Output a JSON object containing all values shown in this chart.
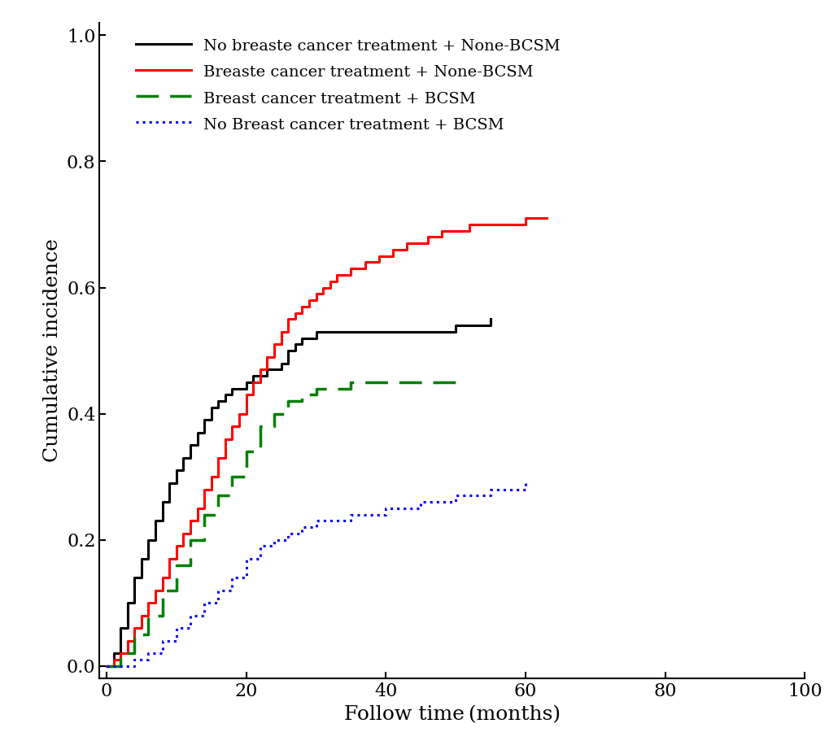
{
  "xlabel": "Follow time（months）",
  "ylabel": "Cumulative incidence",
  "xlim": [
    -1,
    100
  ],
  "ylim": [
    -0.02,
    1.0
  ],
  "xticks": [
    0,
    20,
    40,
    60,
    80,
    100
  ],
  "yticks": [
    0.0,
    0.2,
    0.4,
    0.6,
    0.8,
    1.0
  ],
  "legend_labels": [
    "No breaste cancer treatment + None-BCSM",
    "Breaste cancer treatment + None-BCSM",
    "Breast cancer treatment + BCSM",
    "No Breast cancer treatment + BCSM"
  ],
  "series": [
    {
      "name": "black_solid",
      "color": "#000000",
      "linestyle": "solid",
      "linewidth": 2.2,
      "x": [
        0,
        1,
        2,
        3,
        4,
        5,
        6,
        7,
        8,
        9,
        10,
        11,
        12,
        13,
        14,
        15,
        16,
        17,
        18,
        19,
        20,
        21,
        22,
        23,
        24,
        25,
        26,
        27,
        28,
        29,
        30,
        32,
        35,
        40,
        45,
        50,
        55
      ],
      "y": [
        0.0,
        0.02,
        0.06,
        0.1,
        0.14,
        0.17,
        0.2,
        0.23,
        0.26,
        0.29,
        0.31,
        0.33,
        0.35,
        0.37,
        0.39,
        0.41,
        0.42,
        0.43,
        0.44,
        0.44,
        0.45,
        0.46,
        0.46,
        0.47,
        0.47,
        0.48,
        0.5,
        0.51,
        0.52,
        0.52,
        0.53,
        0.53,
        0.53,
        0.53,
        0.53,
        0.54,
        0.55
      ]
    },
    {
      "name": "red_solid",
      "color": "#FF0000",
      "linestyle": "solid",
      "linewidth": 2.2,
      "x": [
        0,
        1,
        2,
        3,
        4,
        5,
        6,
        7,
        8,
        9,
        10,
        11,
        12,
        13,
        14,
        15,
        16,
        17,
        18,
        19,
        20,
        21,
        22,
        23,
        24,
        25,
        26,
        27,
        28,
        29,
        30,
        31,
        32,
        33,
        34,
        35,
        36,
        37,
        38,
        39,
        40,
        41,
        42,
        43,
        44,
        45,
        46,
        47,
        48,
        50,
        52,
        55,
        58,
        60,
        63
      ],
      "y": [
        0.0,
        0.01,
        0.02,
        0.04,
        0.06,
        0.08,
        0.1,
        0.12,
        0.14,
        0.17,
        0.19,
        0.21,
        0.23,
        0.25,
        0.28,
        0.3,
        0.33,
        0.36,
        0.38,
        0.4,
        0.43,
        0.45,
        0.47,
        0.49,
        0.51,
        0.53,
        0.55,
        0.56,
        0.57,
        0.58,
        0.59,
        0.6,
        0.61,
        0.62,
        0.62,
        0.63,
        0.63,
        0.64,
        0.64,
        0.65,
        0.65,
        0.66,
        0.66,
        0.67,
        0.67,
        0.67,
        0.68,
        0.68,
        0.69,
        0.69,
        0.7,
        0.7,
        0.7,
        0.71,
        0.71
      ]
    },
    {
      "name": "green_dashed",
      "color": "#008000",
      "linestyle": "dashed",
      "linewidth": 2.2,
      "x": [
        0,
        2,
        4,
        6,
        8,
        10,
        12,
        14,
        16,
        18,
        20,
        22,
        24,
        26,
        28,
        30,
        35,
        40,
        45,
        50
      ],
      "y": [
        0.0,
        0.02,
        0.05,
        0.08,
        0.12,
        0.16,
        0.2,
        0.24,
        0.27,
        0.3,
        0.34,
        0.38,
        0.4,
        0.42,
        0.43,
        0.44,
        0.45,
        0.45,
        0.45,
        0.45
      ]
    },
    {
      "name": "blue_dotted",
      "color": "#0000FF",
      "linestyle": "dotted",
      "linewidth": 2.2,
      "x": [
        0,
        2,
        4,
        6,
        8,
        10,
        12,
        14,
        16,
        18,
        20,
        22,
        24,
        26,
        28,
        30,
        35,
        40,
        45,
        50,
        55,
        60
      ],
      "y": [
        0.0,
        0.0,
        0.01,
        0.02,
        0.04,
        0.06,
        0.08,
        0.1,
        0.12,
        0.14,
        0.17,
        0.19,
        0.2,
        0.21,
        0.22,
        0.23,
        0.24,
        0.25,
        0.26,
        0.27,
        0.28,
        0.29
      ]
    }
  ],
  "font_family": "DejaVu Serif",
  "axis_fontsize": 18,
  "tick_fontsize": 16,
  "legend_fontsize": 14
}
